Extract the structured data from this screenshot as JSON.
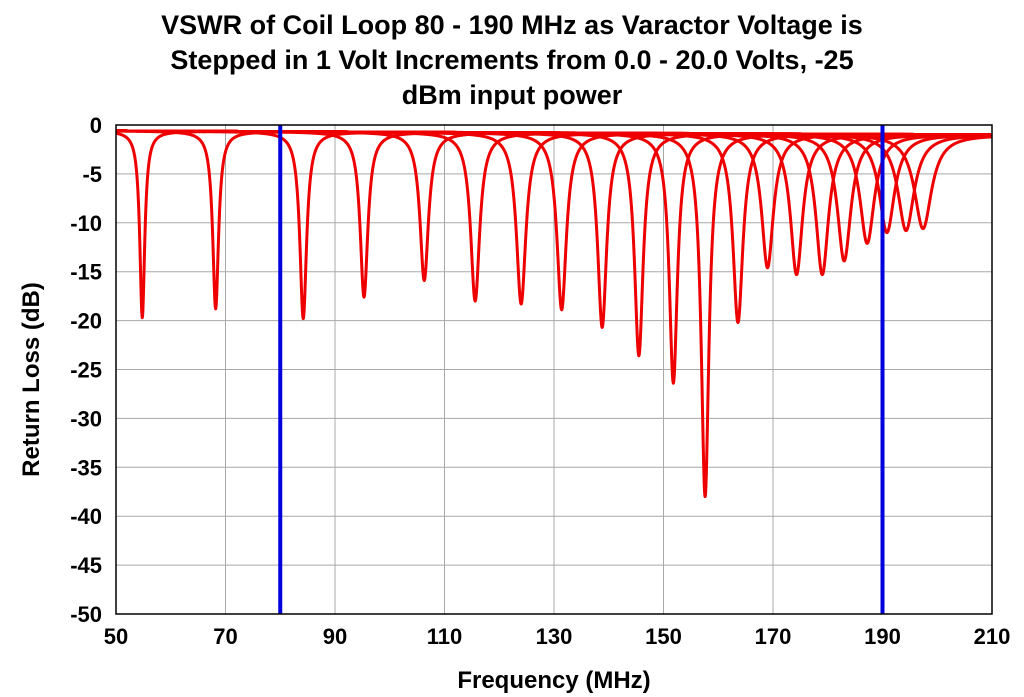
{
  "chart_data": {
    "type": "line",
    "title_lines": [
      "VSWR of Coil Loop 80 - 190 MHz as Varactor Voltage is",
      "Stepped in 1 Volt Increments from 0.0 - 20.0 Volts, -25",
      "dBm input power"
    ],
    "xlabel": "Frequency (MHz)",
    "ylabel": "Return Loss (dB)",
    "xlim": [
      50,
      210
    ],
    "ylim": [
      -50,
      0
    ],
    "xticks": [
      "50",
      "70",
      "90",
      "110",
      "130",
      "150",
      "170",
      "190",
      "210"
    ],
    "yticks": [
      "0",
      "-5",
      "-10",
      "-15",
      "-20",
      "-25",
      "-30",
      "-35",
      "-40",
      "-45",
      "-50"
    ],
    "grid": true,
    "series_color": "#ee0000",
    "resonances": [
      {
        "voltage": 0,
        "f0": 54.8,
        "min_db": -19.7,
        "halfwidth": 0.55
      },
      {
        "voltage": 1,
        "f0": 68.2,
        "min_db": -18.8,
        "halfwidth": 0.65
      },
      {
        "voltage": 2,
        "f0": 84.2,
        "min_db": -19.8,
        "halfwidth": 0.75
      },
      {
        "voltage": 3,
        "f0": 95.3,
        "min_db": -17.6,
        "halfwidth": 0.85
      },
      {
        "voltage": 4,
        "f0": 106.3,
        "min_db": -15.9,
        "halfwidth": 0.95
      },
      {
        "voltage": 5,
        "f0": 115.6,
        "min_db": -18.0,
        "halfwidth": 1.0
      },
      {
        "voltage": 6,
        "f0": 124.0,
        "min_db": -18.3,
        "halfwidth": 1.05
      },
      {
        "voltage": 7,
        "f0": 131.4,
        "min_db": -18.9,
        "halfwidth": 1.05
      },
      {
        "voltage": 8,
        "f0": 138.8,
        "min_db": -20.7,
        "halfwidth": 1.0
      },
      {
        "voltage": 9,
        "f0": 145.5,
        "min_db": -23.6,
        "halfwidth": 0.95
      },
      {
        "voltage": 10,
        "f0": 151.8,
        "min_db": -26.4,
        "halfwidth": 0.9
      },
      {
        "voltage": 11,
        "f0": 157.6,
        "min_db": -38.0,
        "halfwidth": 0.85
      },
      {
        "voltage": 12,
        "f0": 163.6,
        "min_db": -20.2,
        "halfwidth": 1.1
      },
      {
        "voltage": 13,
        "f0": 169.0,
        "min_db": -14.6,
        "halfwidth": 1.3
      },
      {
        "voltage": 14,
        "f0": 174.3,
        "min_db": -15.3,
        "halfwidth": 1.35
      },
      {
        "voltage": 15,
        "f0": 179.0,
        "min_db": -15.3,
        "halfwidth": 1.4
      },
      {
        "voltage": 16,
        "f0": 183.0,
        "min_db": -13.9,
        "halfwidth": 1.5
      },
      {
        "voltage": 17,
        "f0": 187.2,
        "min_db": -12.1,
        "halfwidth": 1.6
      },
      {
        "voltage": 18,
        "f0": 190.8,
        "min_db": -11.0,
        "halfwidth": 1.7
      },
      {
        "voltage": 19,
        "f0": 194.3,
        "min_db": -10.8,
        "halfwidth": 1.8
      },
      {
        "voltage": 20,
        "f0": 197.4,
        "min_db": -10.6,
        "halfwidth": 1.9
      }
    ],
    "baseline_db": {
      "start": -0.6,
      "end": -1.0
    },
    "markers": [
      {
        "x": 80,
        "color": "#0000dd"
      },
      {
        "x": 190,
        "color": "#0000dd"
      }
    ]
  }
}
